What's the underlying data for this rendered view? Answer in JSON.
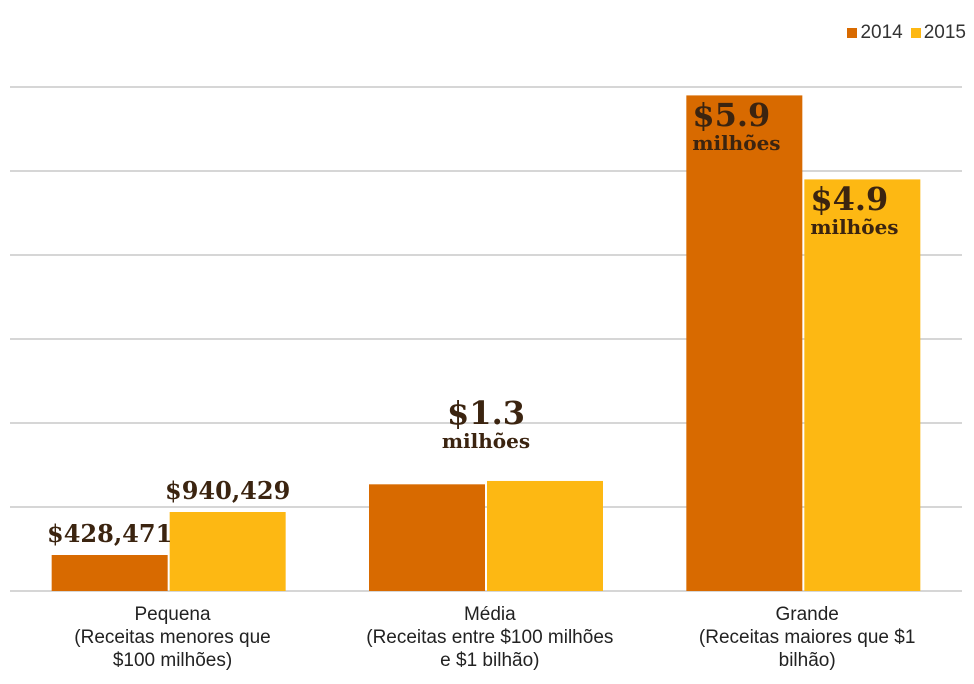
{
  "chart_data": {
    "type": "bar",
    "categories": [
      "Pequena\n(Receitas menores que\n$100 milhões)",
      "Média\n(Receitas entre $100 milhões\ne $1 bilhão)",
      "Grande\n(Receitas maiores que $1\nbilhão)"
    ],
    "series": [
      {
        "name": "2014",
        "color": "#d86a00",
        "values": [
          428471,
          1270000,
          5900000
        ],
        "value_labels": [
          "$428,471",
          null,
          "$5.9 milhões"
        ]
      },
      {
        "name": "2015",
        "color": "#fdb813",
        "values": [
          940429,
          1310000,
          4900000
        ],
        "value_labels": [
          "$940,429",
          "$1.3 milhões",
          "$4.9 milhões"
        ]
      }
    ],
    "ylim": [
      0,
      6000000
    ],
    "yticks": [
      0,
      1000000,
      2000000,
      3000000,
      4000000,
      5000000,
      6000000
    ],
    "grid": true,
    "legend": "top-right"
  }
}
